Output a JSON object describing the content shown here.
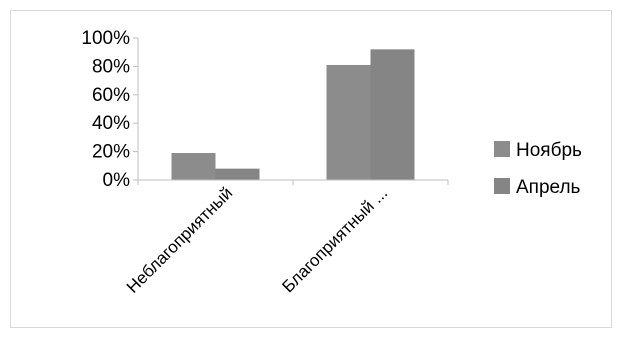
{
  "chart_data": {
    "type": "bar",
    "categories": [
      "Неблагоприятный",
      "Благоприятный ..."
    ],
    "series": [
      {
        "name": "Ноябрь",
        "values": [
          19,
          81
        ],
        "color": "#8c8c8c"
      },
      {
        "name": "Апрель",
        "values": [
          8,
          92
        ],
        "color": "#858585"
      }
    ],
    "y_ticks": [
      "0%",
      "20%",
      "40%",
      "60%",
      "80%",
      "100%"
    ],
    "ylim": [
      0,
      100
    ],
    "grid": false,
    "legend_position": "right"
  }
}
